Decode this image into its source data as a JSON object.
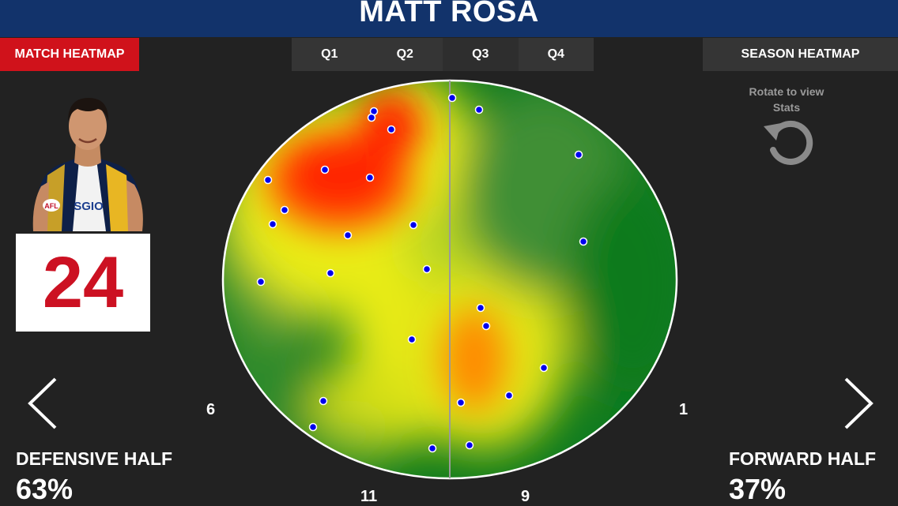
{
  "header": {
    "player_name": "MATT ROSA"
  },
  "buttons": {
    "match_heatmap": "MATCH HEATMAP",
    "season_heatmap": "SEASON HEATMAP"
  },
  "quarters": [
    "Q1",
    "Q2",
    "Q3",
    "Q4"
  ],
  "selected_quarter": "Q3",
  "player": {
    "number": "24",
    "sponsor": "SGIO",
    "league_logo": "AFL"
  },
  "rotate": {
    "hint_line1": "Rotate to view",
    "hint_line2": "Stats",
    "icon": "rotate-icon"
  },
  "counts": {
    "left": "6",
    "right": "1",
    "bottom_left": "11",
    "bottom_right": "9"
  },
  "halves": {
    "defensive": {
      "label": "DEFENSIVE HALF",
      "percent": "63%"
    },
    "forward": {
      "label": "FORWARD HALF",
      "percent": "37%"
    }
  },
  "colors": {
    "header_bg": "#12336b",
    "match_btn": "#d0121b",
    "number_text": "#cc1122",
    "heat_low": "#0d7a1f",
    "heat_mid": "#f2ef00",
    "heat_high": "#ff0000",
    "dot": "#0000ee"
  },
  "icons": {
    "prev": "chevron-left-icon",
    "next": "chevron-right-icon"
  }
}
